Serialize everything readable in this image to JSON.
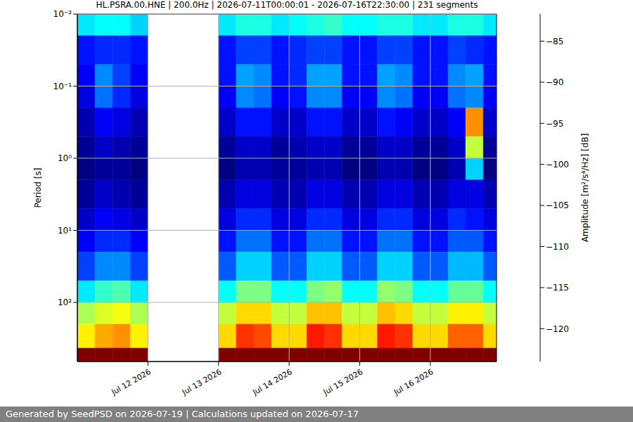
{
  "chart_data": {
    "type": "heatmap",
    "title": "HL.PSRA.00.HNE | 200.0Hz | 2026-07-11T00:00:01 - 2026-07-16T22:30:00 | 231 segments",
    "footer": "Generated by SeedPSD on 2026-07-19 | Calculations updated on 2026-07-17",
    "ylabel": "Period [s]",
    "colorbar_label": "Amplitude [m²/s⁴/Hz] [dB]",
    "log": "y",
    "grid": true,
    "x": [
      "2026-07-11T00:00",
      "2026-07-11T06:00",
      "2026-07-11T12:00",
      "2026-07-11T18:00",
      "2026-07-12T00:00",
      "2026-07-12T06:00",
      "2026-07-12T12:00",
      "2026-07-12T18:00",
      "2026-07-13T00:00",
      "2026-07-13T06:00",
      "2026-07-13T12:00",
      "2026-07-13T18:00",
      "2026-07-14T00:00",
      "2026-07-14T06:00",
      "2026-07-14T12:00",
      "2026-07-14T18:00",
      "2026-07-15T00:00",
      "2026-07-15T06:00",
      "2026-07-15T12:00",
      "2026-07-15T18:00",
      "2026-07-16T00:00",
      "2026-07-16T06:00",
      "2026-07-16T12:00",
      "2026-07-16T18:00"
    ],
    "xlim": [
      "2026-07-11T00:00:01",
      "2026-07-16T22:30:00"
    ],
    "xticks": [
      {
        "value": "2026-07-12T00:00",
        "label": "Jul 12 2026"
      },
      {
        "value": "2026-07-13T00:00",
        "label": "Jul 13 2026"
      },
      {
        "value": "2026-07-14T00:00",
        "label": "Jul 14 2026"
      },
      {
        "value": "2026-07-15T00:00",
        "label": "Jul 15 2026"
      },
      {
        "value": "2026-07-16T00:00",
        "label": "Jul 16 2026"
      }
    ],
    "y_edges": [
      0.01,
      0.02,
      0.05,
      0.1,
      0.2,
      0.5,
      1,
      2,
      5,
      10,
      20,
      50,
      100,
      200,
      430,
      660
    ],
    "ylim": [
      0.01,
      660
    ],
    "yticks": [
      {
        "value": 0.01,
        "label": "10⁻²"
      },
      {
        "value": 0.1,
        "label": "10⁻¹"
      },
      {
        "value": 1,
        "label": "10⁰"
      },
      {
        "value": 10,
        "label": "10¹"
      },
      {
        "value": 100,
        "label": "10²"
      }
    ],
    "cells": [
      [
        -109,
        -108,
        -108,
        -110,
        null,
        null,
        null,
        null,
        -109,
        -107,
        -107,
        -109,
        -108,
        -107,
        -106,
        -108,
        -108,
        -107,
        -107,
        -109,
        -109,
        -107,
        -107,
        -109
      ],
      [
        -118,
        -117,
        -117,
        -118,
        null,
        null,
        null,
        null,
        -118,
        -116,
        -116,
        -118,
        -117,
        -116,
        -116,
        -118,
        -118,
        -116,
        -116,
        -118,
        -118,
        -116,
        -117,
        -118
      ],
      [
        -119,
        -113,
        -116,
        -119,
        null,
        null,
        null,
        null,
        -118,
        -112,
        -113,
        -118,
        -117,
        -112,
        -112,
        -118,
        -118,
        -112,
        -113,
        -118,
        -118,
        -113,
        -112,
        -118
      ],
      [
        -120,
        -114,
        -117,
        -120,
        null,
        null,
        null,
        null,
        -119,
        -113,
        -114,
        -119,
        -118,
        -113,
        -113,
        -119,
        -119,
        -113,
        -114,
        -119,
        -119,
        -114,
        -113,
        -119
      ],
      [
        -122,
        -119,
        -120,
        -122,
        null,
        null,
        null,
        null,
        -121,
        -118,
        -118,
        -121,
        -121,
        -118,
        -118,
        -121,
        -121,
        -118,
        -119,
        -121,
        -121,
        -119,
        -93,
        -121
      ],
      [
        -123,
        -121,
        -122,
        -123,
        null,
        null,
        null,
        null,
        -123,
        -121,
        -121,
        -123,
        -122,
        -121,
        -121,
        -123,
        -123,
        -121,
        -121,
        -123,
        -123,
        -121,
        -100,
        -123
      ],
      [
        -124,
        -123,
        -123,
        -124,
        null,
        null,
        null,
        null,
        -124,
        -122,
        -122,
        -123,
        -123,
        -122,
        -122,
        -124,
        -124,
        -122,
        -122,
        -124,
        -124,
        -122,
        -110,
        -124
      ],
      [
        -123,
        -121,
        -122,
        -123,
        null,
        null,
        null,
        null,
        -122,
        -120,
        -120,
        -122,
        -122,
        -120,
        -120,
        -122,
        -122,
        -120,
        -120,
        -122,
        -122,
        -120,
        -120,
        -122
      ],
      [
        -121,
        -119,
        -120,
        -121,
        null,
        null,
        null,
        null,
        -120,
        -117,
        -117,
        -120,
        -120,
        -117,
        -117,
        -120,
        -120,
        -117,
        -117,
        -120,
        -120,
        -117,
        -118,
        -120
      ],
      [
        -119,
        -117,
        -117,
        -119,
        null,
        null,
        null,
        null,
        -118,
        -114,
        -114,
        -118,
        -118,
        -114,
        -114,
        -118,
        -118,
        -114,
        -114,
        -118,
        -118,
        -115,
        -115,
        -118
      ],
      [
        -116,
        -113,
        -113,
        -116,
        null,
        null,
        null,
        null,
        -115,
        -110,
        -110,
        -115,
        -115,
        -110,
        -110,
        -115,
        -115,
        -110,
        -110,
        -115,
        -115,
        -111,
        -111,
        -115
      ],
      [
        -109,
        -106,
        -105,
        -109,
        null,
        null,
        null,
        null,
        -108,
        -103,
        -103,
        -108,
        -108,
        -103,
        -102,
        -108,
        -108,
        -102,
        -103,
        -108,
        -108,
        -104,
        -104,
        -108
      ],
      [
        -101,
        -99,
        -98,
        -101,
        null,
        null,
        null,
        null,
        -100,
        -96,
        -96,
        -100,
        -100,
        -95,
        -95,
        -100,
        -100,
        -95,
        -96,
        -100,
        -100,
        -97,
        -97,
        -100
      ],
      [
        -97,
        -94,
        -93,
        -97,
        null,
        null,
        null,
        null,
        -96,
        -89,
        -90,
        -96,
        -96,
        -88,
        -89,
        -96,
        -96,
        -88,
        -89,
        -96,
        -96,
        -91,
        -91,
        -96
      ],
      [
        -80,
        -80,
        -80,
        -80,
        null,
        null,
        null,
        null,
        -80,
        -80,
        -80,
        -80,
        -80,
        -80,
        -80,
        -80,
        -80,
        -80,
        -80,
        -80,
        -80,
        -80,
        -80,
        -80
      ]
    ],
    "colorbar_range": [
      -124,
      -81.7
    ],
    "colorbar_ticks": [
      {
        "value": -85,
        "label": "−85"
      },
      {
        "value": -90,
        "label": "−90"
      },
      {
        "value": -95,
        "label": "−95"
      },
      {
        "value": -100,
        "label": "−100"
      },
      {
        "value": -105,
        "label": "−105"
      },
      {
        "value": -110,
        "label": "−110"
      },
      {
        "value": -115,
        "label": "−115"
      },
      {
        "value": -120,
        "label": "−120"
      }
    ]
  }
}
